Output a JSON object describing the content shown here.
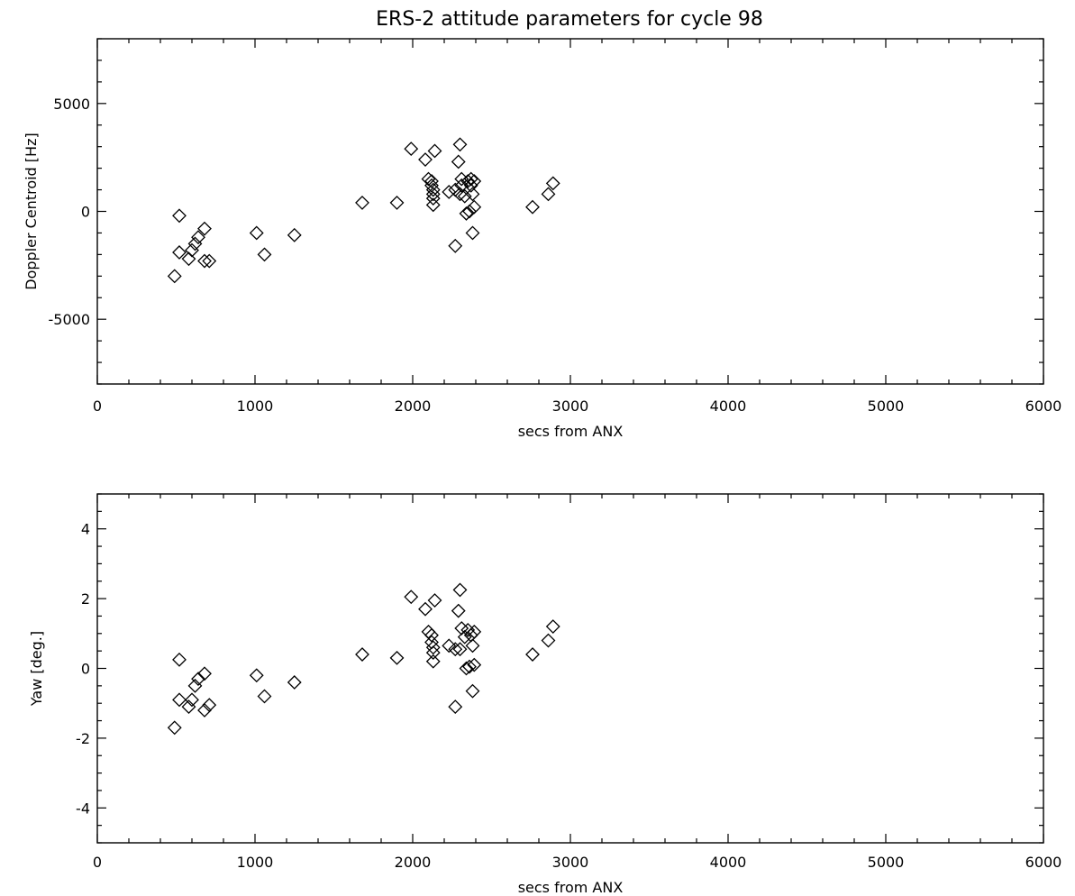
{
  "chart_data": [
    {
      "type": "scatter",
      "title": "ERS-2 attitude parameters for cycle 98",
      "xlabel": "secs from ANX",
      "ylabel": "Doppler Centroid [Hz]",
      "xlim": [
        0,
        6000
      ],
      "ylim": [
        -8000,
        8000
      ],
      "x_ticks": [
        "0",
        "1000",
        "2000",
        "3000",
        "4000",
        "5000",
        "6000"
      ],
      "y_ticks": [
        "-5000",
        "0",
        "5000"
      ],
      "x_tick_values": [
        0,
        1000,
        2000,
        3000,
        4000,
        5000,
        6000
      ],
      "y_tick_values": [
        -5000,
        0,
        5000
      ],
      "marker": "diamond",
      "grid": false,
      "points": [
        [
          490,
          -3000
        ],
        [
          520,
          -200
        ],
        [
          520,
          -1900
        ],
        [
          580,
          -2200
        ],
        [
          600,
          -1800
        ],
        [
          620,
          -1500
        ],
        [
          640,
          -1200
        ],
        [
          680,
          -2300
        ],
        [
          680,
          -800
        ],
        [
          710,
          -2300
        ],
        [
          1010,
          -1000
        ],
        [
          1060,
          -2000
        ],
        [
          1250,
          -1100
        ],
        [
          1680,
          400
        ],
        [
          1900,
          400
        ],
        [
          1990,
          2900
        ],
        [
          2080,
          2400
        ],
        [
          2100,
          1500
        ],
        [
          2120,
          1400
        ],
        [
          2120,
          1200
        ],
        [
          2130,
          1000
        ],
        [
          2130,
          800
        ],
        [
          2130,
          600
        ],
        [
          2130,
          300
        ],
        [
          2140,
          2800
        ],
        [
          2230,
          900
        ],
        [
          2270,
          1000
        ],
        [
          2270,
          -1600
        ],
        [
          2290,
          2300
        ],
        [
          2300,
          800
        ],
        [
          2300,
          3100
        ],
        [
          2310,
          1500
        ],
        [
          2310,
          1200
        ],
        [
          2330,
          700
        ],
        [
          2340,
          -100
        ],
        [
          2350,
          1400
        ],
        [
          2360,
          0
        ],
        [
          2370,
          1200
        ],
        [
          2370,
          1500
        ],
        [
          2380,
          -1000
        ],
        [
          2380,
          800
        ],
        [
          2390,
          200
        ],
        [
          2390,
          1400
        ],
        [
          2760,
          200
        ],
        [
          2860,
          800
        ],
        [
          2890,
          1300
        ]
      ]
    },
    {
      "type": "scatter",
      "title": "",
      "xlabel": "secs from ANX",
      "ylabel": "Yaw [deg.]",
      "xlim": [
        0,
        6000
      ],
      "ylim": [
        -5,
        5
      ],
      "x_ticks": [
        "0",
        "1000",
        "2000",
        "3000",
        "4000",
        "5000",
        "6000"
      ],
      "y_ticks": [
        "-4",
        "-2",
        "0",
        "2",
        "4"
      ],
      "x_tick_values": [
        0,
        1000,
        2000,
        3000,
        4000,
        5000,
        6000
      ],
      "y_tick_values": [
        -4,
        -2,
        0,
        2,
        4
      ],
      "marker": "diamond",
      "grid": false,
      "points": [
        [
          490,
          -1.7
        ],
        [
          520,
          0.25
        ],
        [
          520,
          -0.9
        ],
        [
          580,
          -1.1
        ],
        [
          600,
          -0.9
        ],
        [
          620,
          -0.5
        ],
        [
          640,
          -0.3
        ],
        [
          680,
          -1.2
        ],
        [
          680,
          -0.15
        ],
        [
          710,
          -1.05
        ],
        [
          1010,
          -0.2
        ],
        [
          1060,
          -0.8
        ],
        [
          1250,
          -0.4
        ],
        [
          1680,
          0.4
        ],
        [
          1900,
          0.3
        ],
        [
          1990,
          2.05
        ],
        [
          2080,
          1.7
        ],
        [
          2100,
          1.05
        ],
        [
          2120,
          0.95
        ],
        [
          2120,
          0.75
        ],
        [
          2130,
          0.6
        ],
        [
          2130,
          0.45
        ],
        [
          2130,
          0.2
        ],
        [
          2140,
          1.95
        ],
        [
          2230,
          0.65
        ],
        [
          2270,
          0.55
        ],
        [
          2270,
          -1.1
        ],
        [
          2290,
          1.65
        ],
        [
          2300,
          0.55
        ],
        [
          2300,
          2.25
        ],
        [
          2310,
          1.15
        ],
        [
          2330,
          0.9
        ],
        [
          2340,
          0.0
        ],
        [
          2350,
          1.1
        ],
        [
          2360,
          0.05
        ],
        [
          2370,
          0.95
        ],
        [
          2380,
          -0.65
        ],
        [
          2380,
          0.65
        ],
        [
          2390,
          0.1
        ],
        [
          2390,
          1.05
        ],
        [
          2760,
          0.4
        ],
        [
          2860,
          0.8
        ],
        [
          2890,
          1.2
        ]
      ]
    }
  ]
}
